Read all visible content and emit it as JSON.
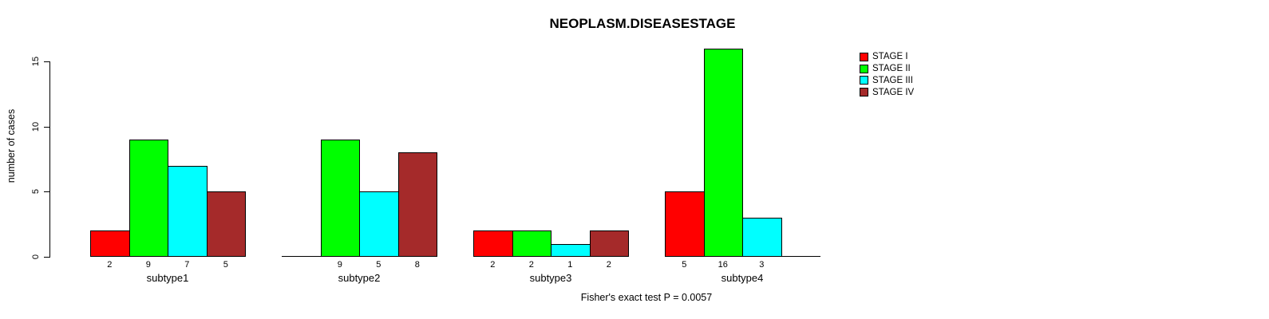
{
  "chart_data": {
    "type": "bar",
    "title": "NEOPLASM.DISEASESTAGE",
    "ylabel": "number of cases",
    "xlabel": "",
    "footnote": "Fisher's exact test P = 0.0057",
    "categories": [
      "subtype1",
      "subtype2",
      "subtype3",
      "subtype4"
    ],
    "series": [
      {
        "name": "STAGE I",
        "color": "#FF0000",
        "values": [
          2,
          0,
          2,
          5
        ]
      },
      {
        "name": "STAGE II",
        "color": "#00FF00",
        "values": [
          9,
          9,
          2,
          16
        ]
      },
      {
        "name": "STAGE III",
        "color": "#00FFFF",
        "values": [
          7,
          5,
          1,
          3
        ]
      },
      {
        "name": "STAGE IV",
        "color": "#A52A2A",
        "values": [
          5,
          8,
          2,
          0
        ]
      }
    ],
    "bar_value_labels": [
      [
        "2",
        "9",
        "7",
        "5"
      ],
      [
        "",
        "9",
        "5",
        "8"
      ],
      [
        "2",
        "2",
        "1",
        "2"
      ],
      [
        "5",
        "16",
        "3",
        ""
      ]
    ],
    "yticks": [
      0,
      5,
      10,
      15
    ],
    "ylim": [
      0,
      16
    ],
    "grid": false,
    "legend_position": "top-right",
    "axis_color": "#000000",
    "background": "#FFFFFF"
  }
}
